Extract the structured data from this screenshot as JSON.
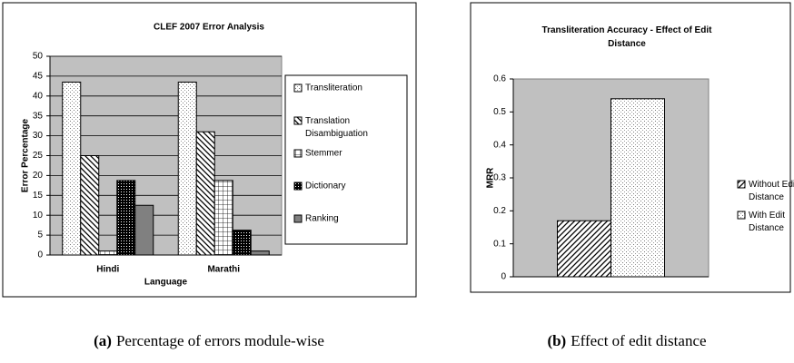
{
  "chart_data": [
    {
      "type": "bar",
      "title": "CLEF 2007 Error Analysis",
      "xlabel": "Language",
      "ylabel": "Error Percentage",
      "categories": [
        "Hindi",
        "Marathi"
      ],
      "series": [
        {
          "name": "Transliteration",
          "color": "#ffffff",
          "pattern": "dots",
          "values": [
            43.5,
            43.5
          ]
        },
        {
          "name": "Translation Disambiguation",
          "color": "#ffffff",
          "pattern": "backhatch",
          "values": [
            25,
            31
          ]
        },
        {
          "name": "Stemmer",
          "color": "#ffffff",
          "pattern": "grid",
          "values": [
            1,
            18.75
          ]
        },
        {
          "name": "Dictionary",
          "color": "#000000",
          "pattern": "dense",
          "values": [
            18.75,
            6.25
          ]
        },
        {
          "name": "Ranking",
          "color": "#808080",
          "pattern": "solid",
          "values": [
            12.5,
            1
          ]
        }
      ],
      "ylim": [
        0,
        50
      ],
      "yticks": [
        0,
        5,
        10,
        15,
        20,
        25,
        30,
        35,
        40,
        45,
        50
      ],
      "grid": true,
      "legend": "right",
      "caption_label": "(a)",
      "caption": "Percentage of errors module-wise"
    },
    {
      "type": "bar",
      "title": "Transliteration Accuracy - Effect of Edit Distance",
      "ylabel": "MRR",
      "categories": [
        null
      ],
      "series": [
        {
          "name": "Without Edit Distance",
          "color": "#ffffff",
          "pattern": "hatch",
          "values": [
            0.17
          ]
        },
        {
          "name": "With Edit Distance",
          "color": "#ffffff",
          "pattern": "dots",
          "values": [
            0.54
          ]
        }
      ],
      "ylim": [
        0,
        0.6
      ],
      "yticks": [
        0,
        0.1,
        0.2,
        0.3,
        0.4,
        0.5,
        0.6
      ],
      "grid": false,
      "legend": "right",
      "caption_label": "(b)",
      "caption": "Effect of edit distance"
    }
  ]
}
